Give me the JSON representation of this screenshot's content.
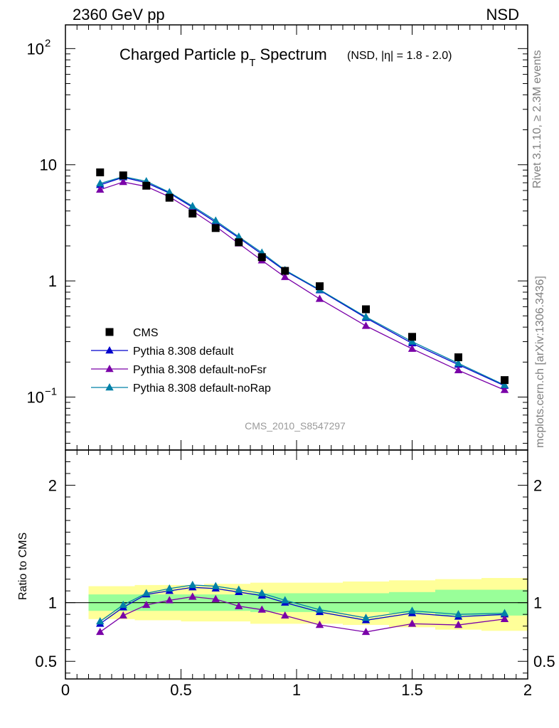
{
  "header": {
    "left_label": "2360 GeV pp",
    "right_label": "NSD"
  },
  "side_labels": {
    "rivet": "Rivet 3.1.10, ≥ 2.3M events",
    "mcplots": "mcplots.cern.ch [arXiv:1306.3436]"
  },
  "analysis_id": "CMS_2010_S8547297",
  "chart_data": [
    {
      "type": "line",
      "panel": "main",
      "title": "Charged Particle p",
      "title_sub": "T",
      "title_rest": " Spectrum",
      "subtitle": "(NSD, |η| = 1.8 - 2.0)",
      "yscale": "log",
      "xlim": [
        0,
        2
      ],
      "ylim": [
        0.035,
        160
      ],
      "y_ticks": [
        {
          "value": 0.1,
          "base": "10",
          "exp": "−1"
        },
        {
          "value": 1,
          "base": "1",
          "exp": ""
        },
        {
          "value": 10,
          "base": "10",
          "exp": ""
        },
        {
          "value": 100,
          "base": "10",
          "exp": "2"
        }
      ],
      "legend_position": "bottom-left",
      "x": [
        0.15,
        0.25,
        0.35,
        0.45,
        0.55,
        0.65,
        0.75,
        0.85,
        0.95,
        1.1,
        1.3,
        1.5,
        1.7,
        1.9
      ],
      "data": {
        "name": "CMS",
        "color": "#000000",
        "values": [
          8.6,
          8.1,
          6.6,
          5.2,
          3.8,
          2.85,
          2.15,
          1.6,
          1.22,
          0.9,
          0.57,
          0.33,
          0.22,
          0.14
        ]
      },
      "series": [
        {
          "name": "Pythia 8.308 default",
          "color": "#0000cc",
          "values": [
            6.7,
            7.8,
            7.0,
            5.7,
            4.3,
            3.2,
            2.35,
            1.7,
            1.22,
            0.83,
            0.48,
            0.29,
            0.19,
            0.125
          ]
        },
        {
          "name": "Pythia 8.308 default-noFsr",
          "color": "#7a00a8",
          "values": [
            6.1,
            7.1,
            6.5,
            5.3,
            4.0,
            2.95,
            2.1,
            1.5,
            1.08,
            0.7,
            0.41,
            0.26,
            0.17,
            0.115
          ]
        },
        {
          "name": "Pythia 8.308 default-noRap",
          "color": "#0080a8",
          "values": [
            6.9,
            7.9,
            7.2,
            5.8,
            4.4,
            3.3,
            2.4,
            1.75,
            1.24,
            0.84,
            0.49,
            0.3,
            0.195,
            0.127
          ]
        }
      ]
    },
    {
      "type": "line",
      "panel": "ratio",
      "ylabel": "Ratio to CMS",
      "xlim": [
        0,
        2
      ],
      "ylim": [
        0.35,
        2.3
      ],
      "x_ticks": [
        0,
        0.5,
        1,
        1.5,
        2
      ],
      "x_tick_labels": [
        "0",
        "0.5",
        "1",
        "1.5",
        "2"
      ],
      "y_ticks": [
        0.5,
        1,
        2
      ],
      "y_tick_labels": [
        "0.5",
        "1",
        "2"
      ],
      "bins": [
        [
          0.1,
          0.2
        ],
        [
          0.2,
          0.3
        ],
        [
          0.3,
          0.4
        ],
        [
          0.4,
          0.5
        ],
        [
          0.5,
          0.6
        ],
        [
          0.6,
          0.7
        ],
        [
          0.7,
          0.8
        ],
        [
          0.8,
          0.9
        ],
        [
          0.9,
          1.0
        ],
        [
          1.0,
          1.2
        ],
        [
          1.2,
          1.4
        ],
        [
          1.4,
          1.6
        ],
        [
          1.6,
          1.8
        ],
        [
          1.8,
          2.0
        ]
      ],
      "band_inner": {
        "color": "#99ff99",
        "lower": [
          0.93,
          0.93,
          0.93,
          0.93,
          0.93,
          0.93,
          0.93,
          0.92,
          0.92,
          0.92,
          0.92,
          0.91,
          0.89,
          0.89
        ],
        "upper": [
          1.07,
          1.07,
          1.07,
          1.07,
          1.07,
          1.07,
          1.07,
          1.08,
          1.08,
          1.08,
          1.08,
          1.09,
          1.11,
          1.11
        ]
      },
      "band_outer": {
        "color": "#ffff99",
        "lower": [
          0.86,
          0.86,
          0.85,
          0.85,
          0.84,
          0.84,
          0.84,
          0.82,
          0.82,
          0.82,
          0.81,
          0.79,
          0.77,
          0.76
        ],
        "upper": [
          1.14,
          1.14,
          1.15,
          1.15,
          1.15,
          1.16,
          1.16,
          1.17,
          1.17,
          1.17,
          1.18,
          1.19,
          1.2,
          1.21
        ]
      },
      "series": [
        {
          "name": "Pythia 8.308 default",
          "color": "#0000cc",
          "values": [
            0.82,
            0.96,
            1.07,
            1.1,
            1.13,
            1.12,
            1.09,
            1.06,
            1.0,
            0.92,
            0.85,
            0.91,
            0.88,
            0.9
          ]
        },
        {
          "name": "Pythia 8.308 default-noFsr",
          "color": "#7a00a8",
          "values": [
            0.75,
            0.89,
            0.98,
            1.02,
            1.05,
            1.03,
            0.97,
            0.94,
            0.89,
            0.81,
            0.75,
            0.82,
            0.81,
            0.86
          ]
        },
        {
          "name": "Pythia 8.308 default-noRap",
          "color": "#0080a8",
          "values": [
            0.84,
            0.98,
            1.08,
            1.12,
            1.15,
            1.14,
            1.11,
            1.08,
            1.02,
            0.94,
            0.87,
            0.93,
            0.9,
            0.91
          ]
        }
      ]
    }
  ]
}
